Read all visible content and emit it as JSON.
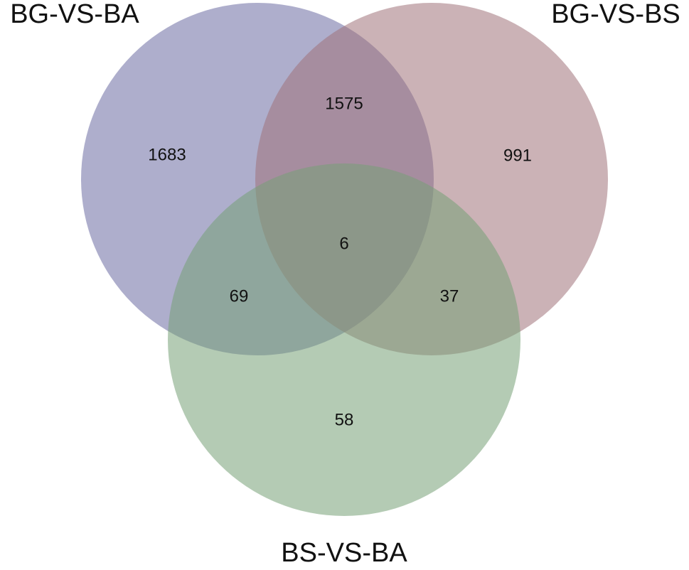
{
  "sets": [
    {
      "label": "BG-VS-BA",
      "color": "#6b6ba3"
    },
    {
      "label": "BG-VS-BS",
      "color": "#a1727a"
    },
    {
      "label": "BS-VS-BA",
      "color": "#77a077"
    }
  ],
  "regions": [
    {
      "sets": "A",
      "value": 1683
    },
    {
      "sets": "AB",
      "value": 1575
    },
    {
      "sets": "B",
      "value": 991
    },
    {
      "sets": "ABC",
      "value": 6
    },
    {
      "sets": "AC",
      "value": 69
    },
    {
      "sets": "BC",
      "value": 37
    },
    {
      "sets": "C",
      "value": 58
    }
  ]
}
